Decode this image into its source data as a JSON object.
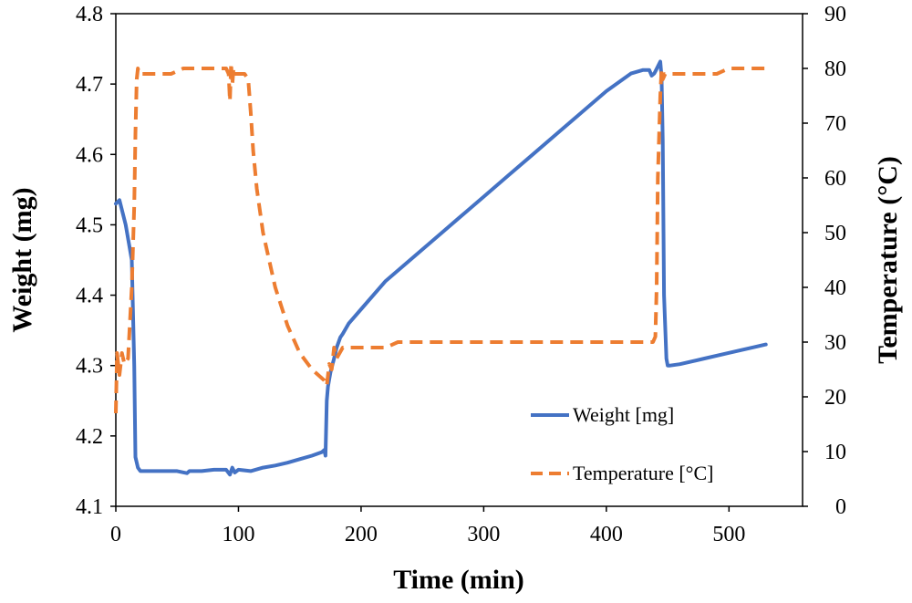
{
  "chart_data": {
    "type": "line",
    "title": "",
    "xlabel": "Time (min)",
    "ylabel_left": "Weight (mg)",
    "ylabel_right": "Temperature (°C)",
    "xlim": [
      0,
      560
    ],
    "ylim_left": [
      4.1,
      4.8
    ],
    "ylim_right": [
      0,
      90
    ],
    "x_ticks": [
      0,
      100,
      200,
      300,
      400,
      500
    ],
    "y_left_ticks": [
      "4.1",
      "4.2",
      "4.3",
      "4.4",
      "4.5",
      "4.6",
      "4.7",
      "4.8"
    ],
    "y_right_ticks": [
      "0",
      "10",
      "20",
      "30",
      "40",
      "50",
      "60",
      "70",
      "80",
      "90"
    ],
    "grid": false,
    "legend_position": "bottom-right",
    "series": [
      {
        "name": "Weight [mg]",
        "axis": "left",
        "color": "#4472c4",
        "style": "solid",
        "x": [
          0,
          3,
          8,
          13,
          15,
          16,
          18,
          20,
          30,
          40,
          50,
          58,
          60,
          62,
          70,
          80,
          90,
          93,
          95,
          97,
          100,
          110,
          120,
          130,
          140,
          150,
          160,
          168,
          170,
          171,
          172,
          173,
          175,
          178,
          180,
          183,
          185,
          190,
          200,
          220,
          240,
          260,
          280,
          300,
          320,
          340,
          360,
          380,
          400,
          420,
          430,
          435,
          437,
          439,
          440,
          442,
          444,
          445,
          446,
          447,
          449,
          450,
          452,
          460,
          480,
          500,
          520,
          530
        ],
        "values": [
          4.53,
          4.535,
          4.5,
          4.45,
          4.3,
          4.17,
          4.155,
          4.15,
          4.15,
          4.15,
          4.15,
          4.147,
          4.15,
          4.15,
          4.15,
          4.152,
          4.152,
          4.145,
          4.155,
          4.148,
          4.152,
          4.15,
          4.155,
          4.158,
          4.162,
          4.167,
          4.172,
          4.177,
          4.18,
          4.172,
          4.25,
          4.27,
          4.29,
          4.31,
          4.325,
          4.34,
          4.345,
          4.36,
          4.38,
          4.42,
          4.45,
          4.48,
          4.51,
          4.54,
          4.57,
          4.6,
          4.63,
          4.66,
          4.69,
          4.715,
          4.72,
          4.72,
          4.712,
          4.715,
          4.718,
          4.725,
          4.732,
          4.71,
          4.62,
          4.4,
          4.31,
          4.3,
          4.3,
          4.302,
          4.31,
          4.318,
          4.326,
          4.33
        ]
      },
      {
        "name": "Temperature [°C]",
        "axis": "right",
        "color": "#ed7d31",
        "style": "dashed",
        "x": [
          0,
          1,
          3,
          5,
          7,
          10,
          13,
          15,
          16,
          17,
          18,
          19,
          20,
          25,
          35,
          45,
          55,
          60,
          70,
          80,
          90,
          92,
          93,
          94,
          95,
          96,
          97,
          100,
          105,
          108,
          110,
          112,
          115,
          120,
          130,
          140,
          150,
          160,
          170,
          172,
          174,
          176,
          178,
          180,
          185,
          200,
          220,
          230,
          250,
          300,
          350,
          400,
          430,
          438,
          440,
          441,
          442,
          444,
          445,
          446,
          448,
          450,
          460,
          470,
          480,
          490,
          500,
          510,
          520,
          530
        ],
        "values": [
          17,
          28,
          24,
          28,
          26,
          27,
          40,
          55,
          68,
          78,
          80,
          79,
          79,
          79,
          79,
          79,
          80,
          80,
          80,
          80,
          80,
          79,
          74,
          81,
          77,
          80,
          79,
          79,
          79,
          78,
          72,
          65,
          58,
          50,
          40,
          33,
          28,
          25,
          23,
          22,
          26,
          25,
          29,
          27,
          29,
          29,
          29,
          30,
          30,
          30,
          30,
          30,
          30,
          30,
          31,
          40,
          60,
          75,
          80,
          78,
          79,
          79,
          79,
          79,
          79,
          79,
          80,
          80,
          80,
          80
        ]
      }
    ]
  }
}
